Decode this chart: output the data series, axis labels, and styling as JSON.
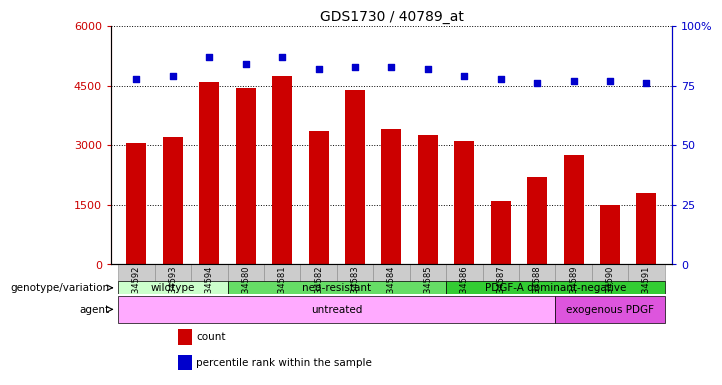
{
  "title": "GDS1730 / 40789_at",
  "samples": [
    "GSM34592",
    "GSM34593",
    "GSM34594",
    "GSM34580",
    "GSM34581",
    "GSM34582",
    "GSM34583",
    "GSM34584",
    "GSM34585",
    "GSM34586",
    "GSM34587",
    "GSM34588",
    "GSM34589",
    "GSM34590",
    "GSM34591"
  ],
  "counts": [
    3050,
    3200,
    4600,
    4450,
    4750,
    3350,
    4400,
    3400,
    3250,
    3100,
    1600,
    2200,
    2750,
    1500,
    1800
  ],
  "percentile": [
    78,
    79,
    87,
    84,
    87,
    82,
    83,
    83,
    82,
    79,
    78,
    76,
    77,
    77,
    76
  ],
  "ylim_left": [
    0,
    6000
  ],
  "ylim_right": [
    0,
    100
  ],
  "yticks_left": [
    0,
    1500,
    3000,
    4500,
    6000
  ],
  "yticks_right": [
    0,
    25,
    50,
    75,
    100
  ],
  "bar_color": "#cc0000",
  "dot_color": "#0000cc",
  "background_color": "#ffffff",
  "xticklabel_bg": "#cccccc",
  "genotype_groups": [
    {
      "label": "wildtype",
      "start": 0,
      "end": 3,
      "color": "#ccffcc"
    },
    {
      "label": "neo-resistant",
      "start": 3,
      "end": 9,
      "color": "#66dd66"
    },
    {
      "label": "PDGF-A dominant-negative",
      "start": 9,
      "end": 15,
      "color": "#33cc33"
    }
  ],
  "agent_groups": [
    {
      "label": "untreated",
      "start": 0,
      "end": 12,
      "color": "#ffaaff"
    },
    {
      "label": "exogenous PDGF",
      "start": 12,
      "end": 15,
      "color": "#dd55dd"
    }
  ],
  "legend_items": [
    {
      "label": "count",
      "color": "#cc0000"
    },
    {
      "label": "percentile rank within the sample",
      "color": "#0000cc"
    }
  ]
}
